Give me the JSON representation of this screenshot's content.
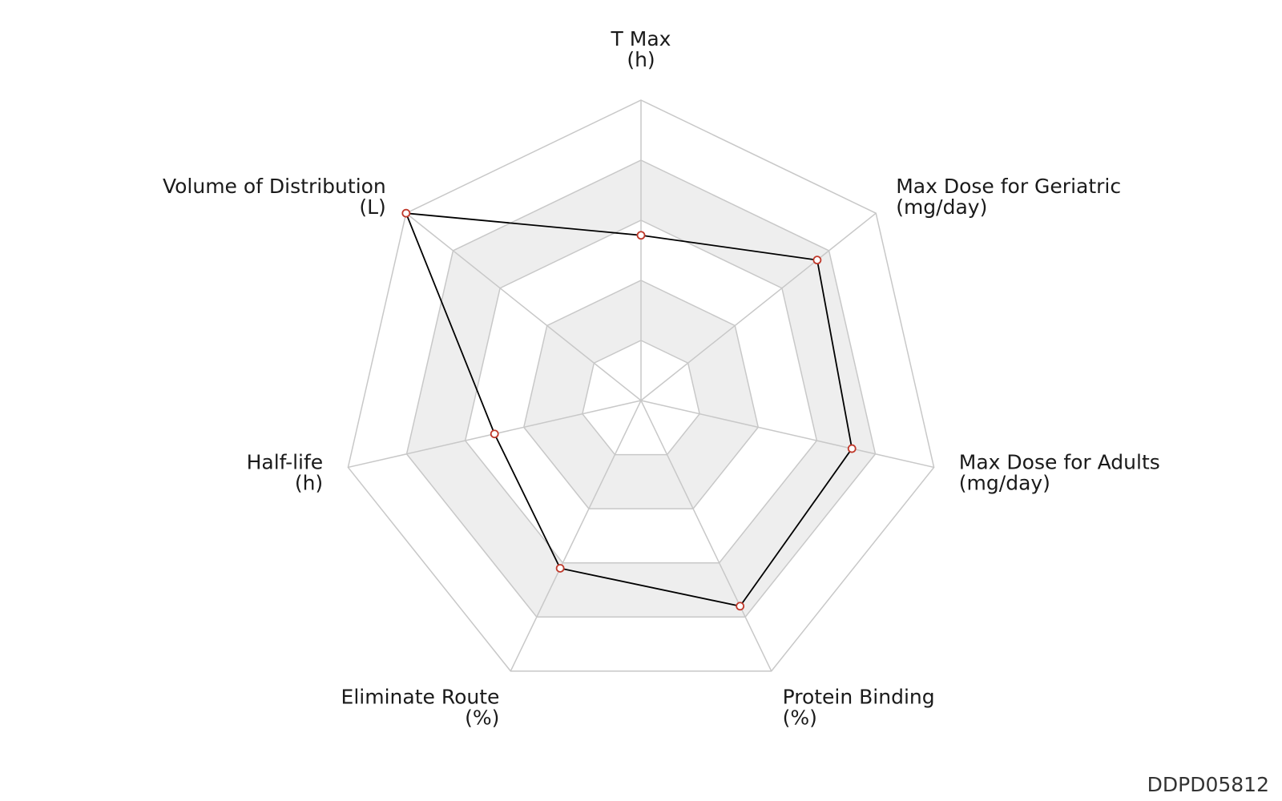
{
  "chart_data": {
    "type": "radar",
    "title": "",
    "axes": [
      {
        "name": "T Max",
        "unit": "(h)",
        "value": 0.55
      },
      {
        "name": "Max Dose for Geriatric",
        "unit": "(mg/day)",
        "value": 0.75
      },
      {
        "name": "Max Dose for Adults",
        "unit": "(mg/day)",
        "value": 0.72
      },
      {
        "name": "Protein Binding",
        "unit": "(%)",
        "value": 0.76
      },
      {
        "name": "Eliminate Route",
        "unit": "(%)",
        "value": 0.62
      },
      {
        "name": "Half-life",
        "unit": "(h)",
        "value": 0.5
      },
      {
        "name": "Volume of Distribution",
        "unit": "(L)",
        "value": 1.0
      }
    ],
    "range": [
      0,
      1
    ],
    "rings": 5,
    "grid": true,
    "legend": "none",
    "colors": {
      "series_line": "#000000",
      "marker_stroke": "#c0392b",
      "marker_fill": "#ffffff",
      "grid_line": "#c8c8c8",
      "band_fill": "#eeeeee"
    }
  },
  "footer": {
    "id": "DDPD05812"
  }
}
